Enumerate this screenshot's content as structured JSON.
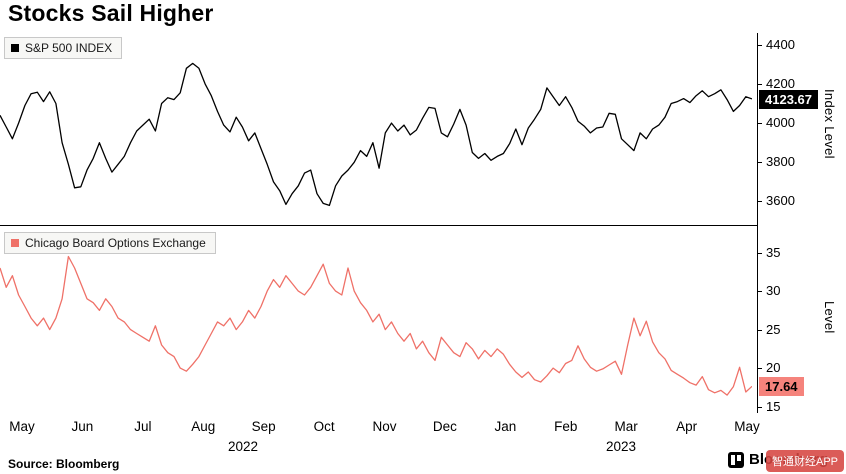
{
  "title": "Stocks Sail Higher",
  "footer": {
    "source_label": "Source: Bloomberg",
    "logo_text": "Bloomberg",
    "watermark_text": "智通财经APP"
  },
  "colors": {
    "sp500_line": "#000000",
    "vix_line": "#ef7168",
    "badge_top_bg": "#000000",
    "badge_top_text": "#ffffff",
    "badge_bottom_bg": "#f5837c",
    "badge_bottom_text": "#000000",
    "watermark_bg": "#d64541"
  },
  "x_axis": {
    "months": [
      "May",
      "Jun",
      "Jul",
      "Aug",
      "Sep",
      "Oct",
      "Nov",
      "Dec",
      "Jan",
      "Feb",
      "Mar",
      "Apr",
      "May"
    ],
    "years": [
      {
        "label": "2022",
        "x": 243
      },
      {
        "label": "2023",
        "x": 621
      }
    ]
  },
  "chart_data": [
    {
      "type": "line",
      "title": "S&P 500 INDEX",
      "ylabel": "Index Level",
      "legend_position": "top-left",
      "grid": false,
      "ylim": [
        3480,
        4460
      ],
      "yticks": [
        3600,
        3800,
        4000,
        4200,
        4400
      ],
      "x_range": [
        "May 2022",
        "May 2023"
      ],
      "last_value": 4123.67,
      "last_value_label": "4123.67",
      "color": "#000000",
      "values": [
        4040,
        3980,
        3920,
        4000,
        4090,
        4150,
        4158,
        4110,
        4160,
        4100,
        3900,
        3790,
        3670,
        3675,
        3760,
        3820,
        3900,
        3820,
        3750,
        3790,
        3830,
        3900,
        3960,
        3990,
        4020,
        3960,
        4100,
        4130,
        4120,
        4155,
        4280,
        4305,
        4280,
        4200,
        4140,
        4060,
        3990,
        3955,
        4030,
        3980,
        3910,
        3950,
        3870,
        3790,
        3700,
        3655,
        3585,
        3640,
        3680,
        3745,
        3760,
        3640,
        3590,
        3580,
        3680,
        3730,
        3760,
        3800,
        3860,
        3830,
        3900,
        3770,
        3950,
        4000,
        3960,
        3990,
        3940,
        3965,
        4025,
        4080,
        4075,
        3950,
        3930,
        3995,
        4070,
        3990,
        3850,
        3820,
        3845,
        3810,
        3830,
        3845,
        3895,
        3970,
        3890,
        3975,
        4020,
        4070,
        4180,
        4135,
        4090,
        4135,
        4080,
        4010,
        3985,
        3950,
        3975,
        3980,
        4050,
        4045,
        3920,
        3890,
        3860,
        3950,
        3920,
        3970,
        3990,
        4030,
        4100,
        4110,
        4125,
        4105,
        4140,
        4165,
        4135,
        4150,
        4170,
        4120,
        4060,
        4090,
        4135,
        4123.67
      ]
    },
    {
      "type": "line",
      "title": "Chicago Board Options Exchange",
      "ylabel": "Level",
      "legend_position": "top-left",
      "grid": false,
      "ylim": [
        14.3,
        38.2
      ],
      "yticks": [
        15,
        20,
        25,
        30,
        35
      ],
      "x_range": [
        "May 2022",
        "May 2023"
      ],
      "last_value": 17.64,
      "last_value_label": "17.64",
      "color": "#ef7168",
      "values": [
        33,
        30.5,
        32,
        29.5,
        28,
        26.5,
        25.5,
        26.5,
        25,
        26.5,
        29,
        34.5,
        33,
        31,
        29,
        28.5,
        27.5,
        29,
        28,
        26.5,
        26,
        25,
        24.5,
        24,
        23.5,
        25.5,
        23,
        22,
        21.5,
        20,
        19.6,
        20.5,
        21.5,
        23,
        24.5,
        26,
        25.5,
        26.5,
        25,
        26,
        27.5,
        26.5,
        28,
        30,
        31.5,
        30.5,
        32,
        31,
        30,
        29.5,
        30.5,
        32,
        33.5,
        31,
        30,
        29.5,
        33,
        30,
        28.5,
        27.5,
        26,
        27,
        25,
        26,
        24.5,
        23.5,
        24.5,
        22.5,
        23.5,
        22,
        21,
        24,
        23,
        22,
        21.5,
        23.3,
        22.5,
        21.2,
        22.3,
        21.5,
        22.5,
        21.8,
        20.5,
        19.5,
        18.8,
        19.5,
        18.5,
        18.2,
        19,
        20,
        19.4,
        20.6,
        21,
        22.9,
        21.2,
        20.1,
        19.6,
        19.9,
        20.4,
        20.9,
        19.2,
        23,
        26.5,
        24.2,
        26.1,
        23.4,
        22,
        21.2,
        19.7,
        19.2,
        18.7,
        18.1,
        17.8,
        18.9,
        17.2,
        16.8,
        17.1,
        16.5,
        17.6,
        20.1,
        16.9,
        17.64
      ]
    }
  ]
}
